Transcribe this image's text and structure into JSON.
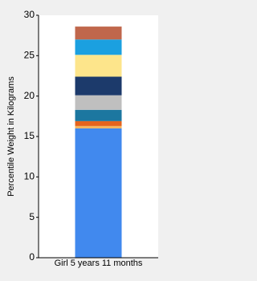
{
  "chart_data": {
    "type": "stacked_bar",
    "y_label": "Percentile Weight in Kilograms",
    "categories": [
      "Girl 5 years 11 months"
    ],
    "series": [
      {
        "color": "#4189ee",
        "values": [
          16.0
        ]
      },
      {
        "color": "#f4b35e",
        "values": [
          0.3
        ]
      },
      {
        "color": "#e5641e",
        "values": [
          0.6
        ]
      },
      {
        "color": "#1c77a0",
        "values": [
          1.4
        ]
      },
      {
        "color": "#bfbfbf",
        "values": [
          1.8
        ]
      },
      {
        "color": "#1c3a6b",
        "values": [
          2.3
        ]
      },
      {
        "color": "#fde58b",
        "values": [
          2.7
        ]
      },
      {
        "color": "#1ba0e0",
        "values": [
          1.9
        ]
      },
      {
        "color": "#c0674c",
        "values": [
          1.6
        ]
      }
    ],
    "ylim": [
      0,
      30
    ],
    "yticks": [
      0,
      5,
      10,
      15,
      20,
      25,
      30
    ],
    "grid": false
  }
}
